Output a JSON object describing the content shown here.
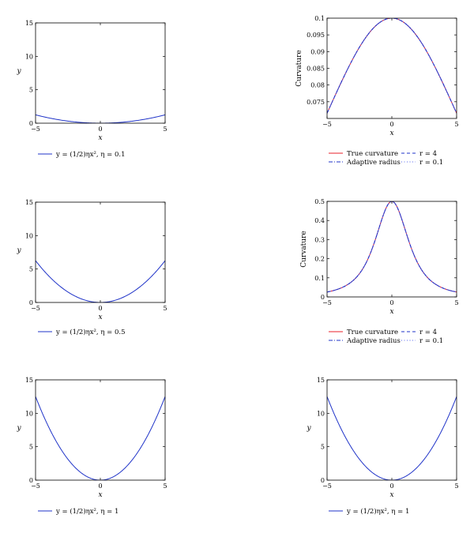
{
  "chart_data": [
    {
      "id": "p1",
      "type": "line",
      "xlabel": "x",
      "ylabel": "y",
      "xlim": [
        -5,
        5
      ],
      "ylim": [
        0,
        15
      ],
      "xticks": [
        -5,
        0,
        5
      ],
      "yticks": [
        0,
        5,
        10,
        15
      ],
      "xtick_labels": [
        "−5",
        "0",
        "5"
      ],
      "ytick_labels": [
        "0",
        "5",
        "10",
        "15"
      ],
      "ytick_format": "int",
      "grid": false,
      "legend": "below",
      "series": [
        {
          "name": "y = (1/2)ηx², η = 0.1",
          "color": "#1f33c8",
          "style": "solid",
          "curve": "parabola",
          "eta": 0.1
        }
      ]
    },
    {
      "id": "p2",
      "type": "line",
      "xlabel": "x",
      "ylabel": "Curvature",
      "xlim": [
        -5,
        5
      ],
      "ylim": [
        0.07,
        0.1
      ],
      "xticks": [
        -5,
        0,
        5
      ],
      "yticks": [
        0.075,
        0.08,
        0.085,
        0.09,
        0.095,
        0.1
      ],
      "xtick_labels": [
        "−5",
        "0",
        "5"
      ],
      "ytick_labels": [
        "0.075",
        "0.08",
        "0.085",
        "0.09",
        "0.095",
        "0.1"
      ],
      "grid": false,
      "legend": "below",
      "series": [
        {
          "name": "True curvature",
          "color": "#e8202a",
          "style": "solid",
          "curve": "curv_true",
          "eta": 0.1
        },
        {
          "name": "Adaptive radius",
          "color": "#1f33c8",
          "style": "dashdot",
          "curve": "curv_true",
          "eta": 0.1
        },
        {
          "name": "r = 4",
          "color": "#1f33c8",
          "style": "dashed",
          "curve": "curv_r",
          "eta": 0.1,
          "r": 4
        },
        {
          "name": "r = 0.1",
          "color": "#5566ee",
          "style": "dotted",
          "curve": "curv_r",
          "eta": 0.1,
          "r": 0.1
        }
      ]
    },
    {
      "id": "p3",
      "type": "line",
      "xlabel": "x",
      "ylabel": "y",
      "xlim": [
        -5,
        5
      ],
      "ylim": [
        0,
        15
      ],
      "xticks": [
        -5,
        0,
        5
      ],
      "yticks": [
        0,
        5,
        10,
        15
      ],
      "xtick_labels": [
        "−5",
        "0",
        "5"
      ],
      "ytick_labels": [
        "0",
        "5",
        "10",
        "15"
      ],
      "grid": false,
      "legend": "below",
      "series": [
        {
          "name": "y = (1/2)ηx², η = 0.5",
          "color": "#1f33c8",
          "style": "solid",
          "curve": "parabola",
          "eta": 0.5
        }
      ]
    },
    {
      "id": "p4",
      "type": "line",
      "xlabel": "x",
      "ylabel": "Curvature",
      "xlim": [
        -5,
        5
      ],
      "ylim": [
        0,
        0.5
      ],
      "xticks": [
        -5,
        0,
        5
      ],
      "yticks": [
        0,
        0.1,
        0.2,
        0.3,
        0.4,
        0.5
      ],
      "xtick_labels": [
        "−5",
        "0",
        "5"
      ],
      "ytick_labels": [
        "0",
        "0.1",
        "0.2",
        "0.3",
        "0.4",
        "0.5"
      ],
      "grid": false,
      "legend": "below",
      "series": [
        {
          "name": "True curvature",
          "color": "#e8202a",
          "style": "solid",
          "curve": "curv_true",
          "eta": 0.5
        },
        {
          "name": "Adaptive radius",
          "color": "#1f33c8",
          "style": "dashdot",
          "curve": "curv_true",
          "eta": 0.5
        },
        {
          "name": "r = 4",
          "color": "#1f33c8",
          "style": "dashed",
          "curve": "curv_r",
          "eta": 0.5,
          "r": 4
        },
        {
          "name": "r = 0.1",
          "color": "#5566ee",
          "style": "dotted",
          "curve": "curv_r",
          "eta": 0.5,
          "r": 0.1
        }
      ]
    },
    {
      "id": "p5",
      "type": "line",
      "xlabel": "x",
      "ylabel": "y",
      "xlim": [
        -5,
        5
      ],
      "ylim": [
        0,
        15
      ],
      "xticks": [
        -5,
        0,
        5
      ],
      "yticks": [
        0,
        5,
        10,
        15
      ],
      "xtick_labels": [
        "−5",
        "0",
        "5"
      ],
      "ytick_labels": [
        "0",
        "5",
        "10",
        "15"
      ],
      "grid": false,
      "legend": "below",
      "series": [
        {
          "name": "y = (1/2)ηx², η = 1",
          "color": "#1f33c8",
          "style": "solid",
          "curve": "parabola",
          "eta": 1
        }
      ]
    },
    {
      "id": "p6",
      "type": "line",
      "xlabel": "x",
      "ylabel": "y",
      "xlim": [
        -5,
        5
      ],
      "ylim": [
        0,
        15
      ],
      "xticks": [
        -5,
        0,
        5
      ],
      "yticks": [
        0,
        5,
        10,
        15
      ],
      "xtick_labels": [
        "−5",
        "0",
        "5"
      ],
      "ytick_labels": [
        "0",
        "5",
        "10",
        "15"
      ],
      "grid": false,
      "legend": "below",
      "series": [
        {
          "name": "y = (1/2)ηx², η = 1",
          "color": "#1f33c8",
          "style": "solid",
          "curve": "parabola",
          "eta": 1
        }
      ]
    }
  ]
}
